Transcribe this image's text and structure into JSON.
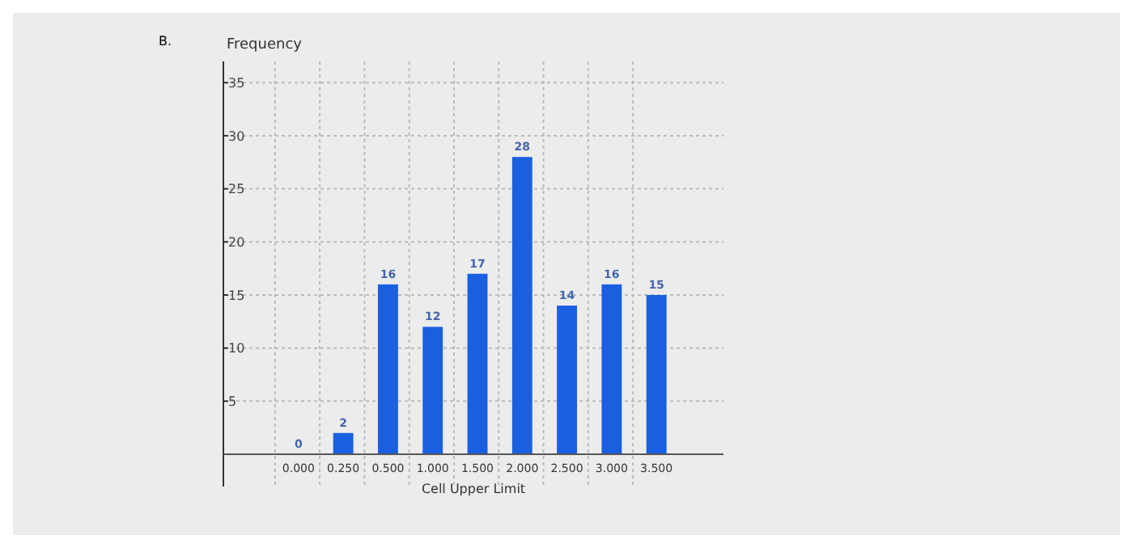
{
  "chart_data": {
    "type": "bar",
    "ylabel": "Frequency",
    "xlabel": "Cell Upper Limit",
    "annotations": [
      "B."
    ],
    "categories": [
      "0.000",
      "0.250",
      "0.500",
      "1.000",
      "1.500",
      "2.000",
      "2.500",
      "3.000",
      "3.500"
    ],
    "values": [
      0,
      2,
      16,
      12,
      17,
      28,
      14,
      16,
      15
    ],
    "color": "#1a5fe0",
    "ylim": [
      0,
      37
    ],
    "yticks": [
      5,
      10,
      15,
      20,
      25,
      30,
      35
    ],
    "grid": true,
    "data_labels": true
  }
}
